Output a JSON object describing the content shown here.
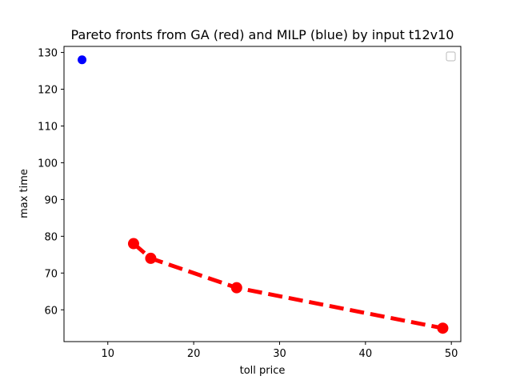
{
  "chart_data": {
    "type": "line",
    "title": "Pareto fronts from GA (red) and MILP (blue) by input t12v10",
    "xlabel": "toll price",
    "ylabel": "max time",
    "xlim": [
      4.9,
      51.1
    ],
    "ylim": [
      51.35,
      131.65
    ],
    "x_ticks": [
      10,
      20,
      30,
      40,
      50
    ],
    "y_ticks": [
      60,
      70,
      80,
      90,
      100,
      110,
      120,
      130
    ],
    "grid": false,
    "legend": {
      "placement": "top-right",
      "entries": []
    },
    "series": [
      {
        "color": "#ff0000",
        "style": "dashed-line-with-markers",
        "points": [
          {
            "x": 13,
            "y": 78
          },
          {
            "x": 15,
            "y": 74
          },
          {
            "x": 25,
            "y": 66
          },
          {
            "x": 49,
            "y": 55
          }
        ]
      },
      {
        "color": "#0000ff",
        "style": "markers",
        "points": [
          {
            "x": 7,
            "y": 128
          }
        ]
      }
    ]
  }
}
